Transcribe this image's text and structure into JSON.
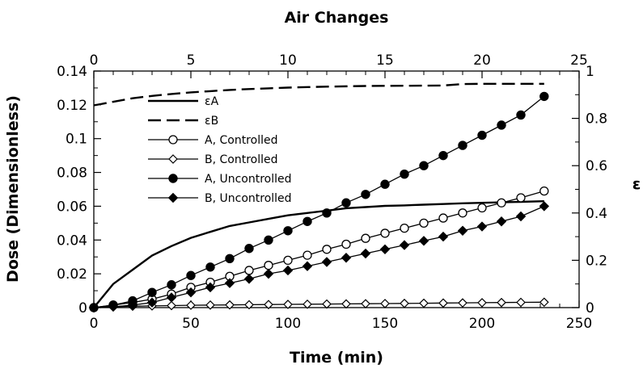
{
  "chart_data": {
    "type": "line",
    "title": "",
    "xlabel": "Time (min)",
    "ylabel": "Dose (Dimensionless)",
    "x2label": "Air Changes",
    "y2label": "ε",
    "xlim": [
      0,
      250
    ],
    "ylim": [
      0,
      0.14
    ],
    "x2lim": [
      0,
      25
    ],
    "y2lim": [
      0,
      1
    ],
    "xticks": [
      "0",
      "50",
      "100",
      "150",
      "200",
      "250"
    ],
    "yticks": [
      "0",
      "0.02",
      "0.04",
      "0.06",
      "0.08",
      "0.1",
      "0.12",
      "0.14"
    ],
    "x2ticks": [
      "0",
      "5",
      "10",
      "15",
      "20",
      "25"
    ],
    "y2ticks": [
      "0",
      "0.2",
      "0.4",
      "0.6",
      "0.8",
      "1"
    ],
    "grid": false,
    "legend_position": "top-left",
    "series": [
      {
        "name": "εA",
        "axis": "right",
        "style": "solid",
        "marker": "none",
        "x": [
          0,
          5,
          10,
          20,
          30,
          40,
          50,
          60,
          70,
          80,
          90,
          100,
          110,
          120,
          130,
          140,
          150,
          160,
          170,
          180,
          190,
          200,
          210,
          220,
          232
        ],
        "y": [
          0,
          0.05,
          0.1,
          0.16,
          0.22,
          0.26,
          0.295,
          0.32,
          0.345,
          0.36,
          0.375,
          0.39,
          0.4,
          0.41,
          0.42,
          0.425,
          0.43,
          0.432,
          0.435,
          0.438,
          0.441,
          0.443,
          0.445,
          0.447,
          0.45
        ]
      },
      {
        "name": "εB",
        "axis": "right",
        "style": "dashed",
        "marker": "none",
        "x": [
          0,
          10,
          20,
          30,
          40,
          50,
          60,
          70,
          80,
          90,
          100,
          120,
          140,
          160,
          180,
          190,
          200,
          210,
          232
        ],
        "y": [
          0.855,
          0.87,
          0.885,
          0.895,
          0.903,
          0.91,
          0.915,
          0.92,
          0.924,
          0.927,
          0.93,
          0.934,
          0.937,
          0.938,
          0.939,
          0.945,
          0.946,
          0.946,
          0.946
        ]
      },
      {
        "name": "A, Controlled",
        "axis": "left",
        "style": "solid",
        "marker": "circle-open",
        "x": [
          0,
          10,
          20,
          30,
          40,
          50,
          60,
          70,
          80,
          90,
          100,
          110,
          120,
          130,
          140,
          150,
          160,
          170,
          180,
          190,
          200,
          210,
          220,
          232
        ],
        "y": [
          0,
          0.0015,
          0.003,
          0.005,
          0.008,
          0.012,
          0.015,
          0.0185,
          0.022,
          0.025,
          0.028,
          0.031,
          0.0345,
          0.0375,
          0.041,
          0.044,
          0.047,
          0.05,
          0.053,
          0.056,
          0.059,
          0.062,
          0.065,
          0.069
        ]
      },
      {
        "name": "B, Controlled",
        "axis": "left",
        "style": "solid",
        "marker": "diamond-open",
        "x": [
          0,
          10,
          20,
          30,
          40,
          50,
          60,
          70,
          80,
          90,
          100,
          110,
          120,
          130,
          140,
          150,
          160,
          170,
          180,
          190,
          200,
          210,
          220,
          232
        ],
        "y": [
          0,
          0.0005,
          0.0008,
          0.001,
          0.0012,
          0.0014,
          0.0015,
          0.0016,
          0.0017,
          0.0018,
          0.0019,
          0.002,
          0.0021,
          0.0022,
          0.0023,
          0.0024,
          0.0025,
          0.0026,
          0.0027,
          0.0028,
          0.0029,
          0.003,
          0.0031,
          0.0032
        ]
      },
      {
        "name": "A, Uncontrolled",
        "axis": "left",
        "style": "solid",
        "marker": "circle-filled",
        "x": [
          0,
          10,
          20,
          30,
          40,
          50,
          60,
          70,
          80,
          90,
          100,
          110,
          120,
          130,
          140,
          150,
          160,
          170,
          180,
          190,
          200,
          210,
          220,
          232
        ],
        "y": [
          0,
          0.0015,
          0.004,
          0.009,
          0.0135,
          0.019,
          0.024,
          0.029,
          0.035,
          0.04,
          0.0455,
          0.051,
          0.056,
          0.062,
          0.067,
          0.073,
          0.079,
          0.084,
          0.09,
          0.096,
          0.102,
          0.108,
          0.114,
          0.125
        ]
      },
      {
        "name": "B, Uncontrolled",
        "axis": "left",
        "style": "solid",
        "marker": "diamond-filled",
        "x": [
          0,
          10,
          20,
          30,
          40,
          50,
          60,
          70,
          80,
          90,
          100,
          110,
          120,
          130,
          140,
          150,
          160,
          170,
          180,
          190,
          200,
          210,
          220,
          232
        ],
        "y": [
          0,
          0.0005,
          0.0015,
          0.003,
          0.006,
          0.009,
          0.012,
          0.0145,
          0.017,
          0.02,
          0.022,
          0.0245,
          0.027,
          0.0295,
          0.032,
          0.0345,
          0.037,
          0.0395,
          0.042,
          0.0455,
          0.048,
          0.051,
          0.054,
          0.06
        ]
      }
    ]
  }
}
